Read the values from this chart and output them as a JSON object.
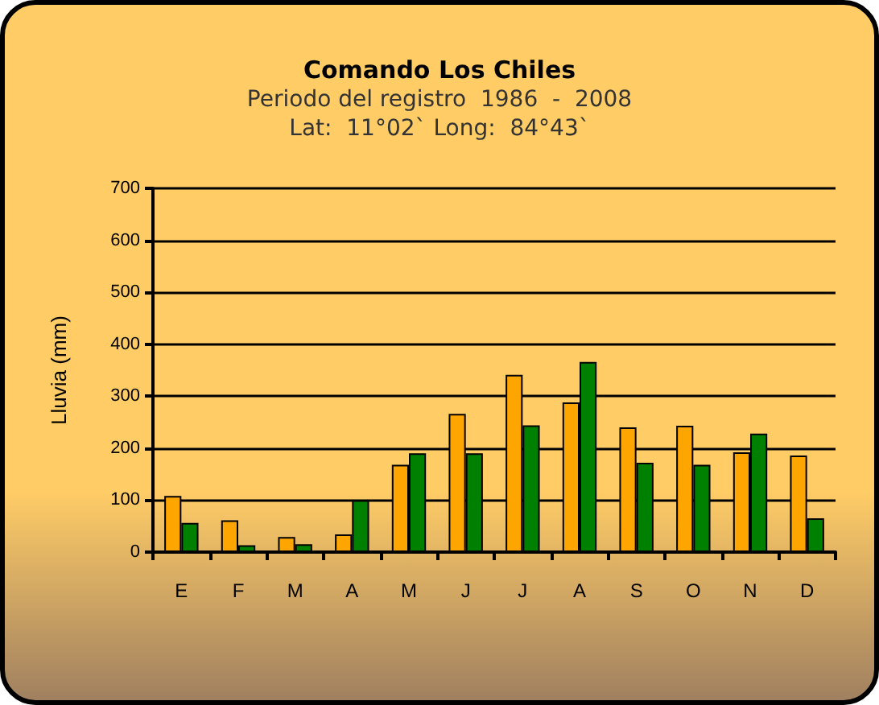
{
  "chart_data": {
    "type": "bar",
    "title": "Comando Los Chiles",
    "subtitle": "Periodo del registro  1986  -  2008\nLat:  11°02` Long:  84°43`",
    "ylabel": "Lluvia (mm)",
    "categories": [
      "E",
      "F",
      "M",
      "A",
      "M",
      "J",
      "J",
      "A",
      "S",
      "O",
      "N",
      "D"
    ],
    "series": [
      {
        "color": "#ffa500",
        "values": [
          108,
          61,
          29,
          34,
          168,
          266,
          341,
          288,
          240,
          243,
          192,
          186
        ]
      },
      {
        "color": "#008000",
        "values": [
          56,
          13,
          15,
          100,
          190,
          190,
          244,
          366,
          172,
          168,
          228,
          65
        ]
      }
    ],
    "ylim": [
      0,
      700
    ],
    "yticks": [
      0,
      100,
      200,
      300,
      400,
      500,
      600,
      700
    ],
    "grid": "y"
  }
}
